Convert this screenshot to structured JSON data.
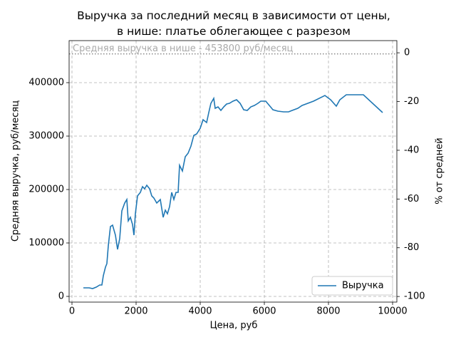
{
  "chart_data": {
    "type": "line",
    "title": "Выручка за последний месяц в зависимости от цены,\nв нише: платье облегающее с разрезом",
    "xlabel": "Цена, руб",
    "ylabel": "Средняя выручка, руб/месяц",
    "y2label": "% от средней",
    "annotation": "Средняя выручка в нише - 453800 руб/месяц",
    "hline": 453800,
    "x": [
      356,
      533,
      644,
      756,
      867,
      933,
      978,
      1044,
      1089,
      1133,
      1200,
      1267,
      1356,
      1422,
      1489,
      1556,
      1644,
      1711,
      1756,
      1822,
      1889,
      1933,
      1978,
      2044,
      2133,
      2200,
      2267,
      2333,
      2422,
      2489,
      2556,
      2644,
      2756,
      2844,
      2911,
      2978,
      3044,
      3111,
      3178,
      3244,
      3311,
      3356,
      3444,
      3533,
      3622,
      3711,
      3800,
      3889,
      4000,
      4089,
      4200,
      4267,
      4333,
      4422,
      4467,
      4556,
      4644,
      4733,
      4822,
      4911,
      5022,
      5133,
      5244,
      5356,
      5467,
      5578,
      5689,
      5800,
      5889,
      6044,
      6156,
      6267,
      6422,
      6600,
      6756,
      6867,
      7044,
      7178,
      7533,
      7889,
      8067,
      8244,
      8356,
      8556,
      8733,
      9089,
      9689
    ],
    "series": [
      {
        "name": "Выручка",
        "color": "#1f77b4",
        "values": [
          16000,
          16000,
          14700,
          17300,
          21300,
          21300,
          38700,
          54700,
          61300,
          94700,
          130700,
          133300,
          114700,
          88000,
          108000,
          160000,
          174700,
          181300,
          141300,
          148000,
          134700,
          114700,
          154700,
          188000,
          194700,
          205300,
          201300,
          208000,
          201300,
          188000,
          184000,
          174700,
          181300,
          148000,
          161300,
          154700,
          168000,
          194700,
          181300,
          194700,
          194700,
          245300,
          234700,
          261300,
          268000,
          281300,
          301300,
          304000,
          314700,
          330700,
          325300,
          344000,
          361300,
          370700,
          352000,
          354700,
          348000,
          354700,
          360000,
          361300,
          365300,
          368000,
          361300,
          349300,
          348000,
          354700,
          357300,
          361300,
          365300,
          365300,
          357300,
          349300,
          346700,
          345300,
          345300,
          348000,
          352000,
          357300,
          365300,
          376000,
          368000,
          356000,
          368000,
          377300,
          377300,
          377300,
          344000
        ]
      }
    ],
    "xlim": [
      -89,
      10133
    ],
    "xticks": [
      0,
      2000,
      4000,
      6000,
      8000,
      10000
    ],
    "ylim": [
      -10667,
      478667
    ],
    "yticks": [
      0,
      100000,
      200000,
      300000,
      400000
    ],
    "y2lim": [
      -102.3,
      5.0
    ],
    "y2ticks": [
      0,
      -20,
      -40,
      -60,
      -80,
      -100
    ],
    "grid": true,
    "legend": "lower right"
  }
}
